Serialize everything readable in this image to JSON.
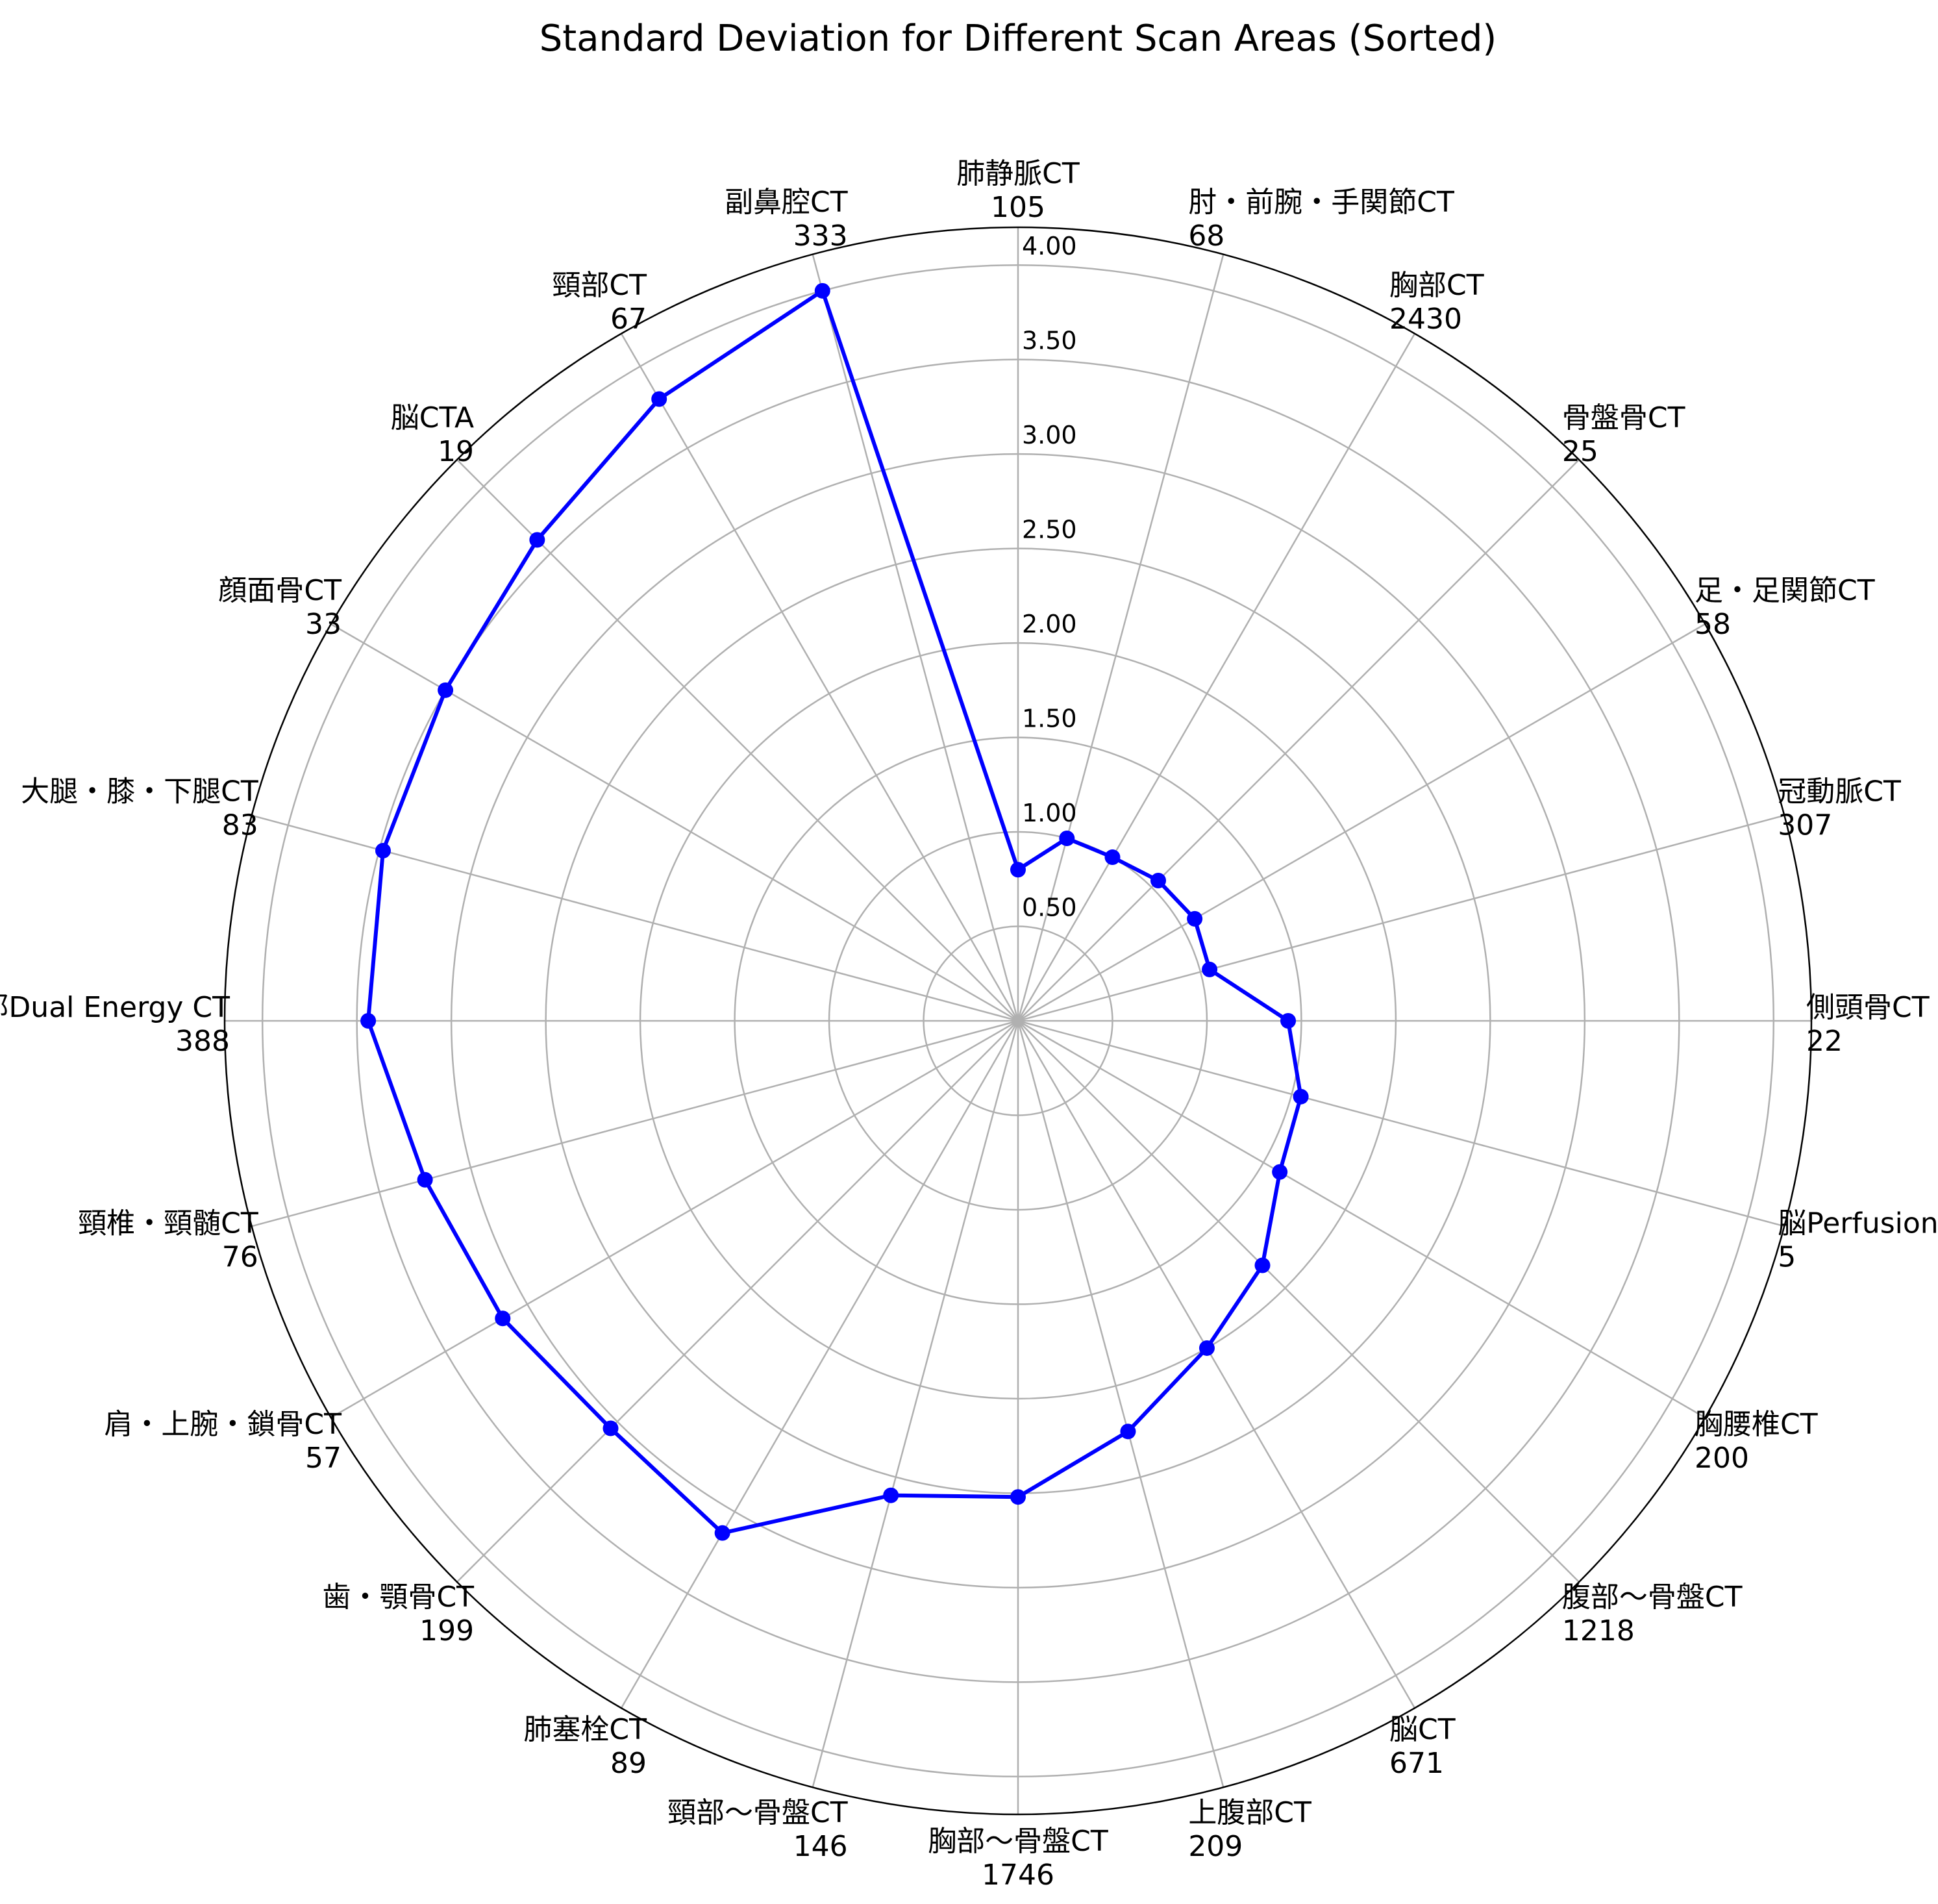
{
  "chart_data": {
    "type": "radar",
    "title": "Standard Deviation for Different Scan Areas (Sorted)",
    "categories": [
      {
        "label": "肺静脈CT",
        "count": "105",
        "value": 0.8
      },
      {
        "label": "肘・前腕・手関節CT",
        "count": "68",
        "value": 1.0
      },
      {
        "label": "胸部CT",
        "count": "2430",
        "value": 1.0
      },
      {
        "label": "骨盤骨CT",
        "count": "25",
        "value": 1.05
      },
      {
        "label": "足・足関節CT",
        "count": "58",
        "value": 1.08
      },
      {
        "label": "冠動脈CT",
        "count": "307",
        "value": 1.05
      },
      {
        "label": "側頭骨CT",
        "count": "22",
        "value": 1.43
      },
      {
        "label": "脳Perfusion",
        "count": "5",
        "value": 1.55
      },
      {
        "label": "胸腰椎CT",
        "count": "200",
        "value": 1.6
      },
      {
        "label": "腹部～骨盤CT",
        "count": "1218",
        "value": 1.83
      },
      {
        "label": "脳CT",
        "count": "671",
        "value": 2.0
      },
      {
        "label": "上腹部CT",
        "count": "209",
        "value": 2.25
      },
      {
        "label": "胸部～骨盤CT",
        "count": "1746",
        "value": 2.52
      },
      {
        "label": "頸部～骨盤CT",
        "count": "146",
        "value": 2.6
      },
      {
        "label": "肺塞栓CT",
        "count": "89",
        "value": 3.13
      },
      {
        "label": "歯・顎骨CT",
        "count": "199",
        "value": 3.05
      },
      {
        "label": "肩・上腕・鎖骨CT",
        "count": "57",
        "value": 3.15
      },
      {
        "label": "頸椎・頸髄CT",
        "count": "76",
        "value": 3.25
      },
      {
        "label": "体幹部Dual Energy CT",
        "count": "388",
        "value": 3.44
      },
      {
        "label": "大腿・膝・下腿CT",
        "count": "83",
        "value": 3.48
      },
      {
        "label": "顔面骨CT",
        "count": "33",
        "value": 3.5
      },
      {
        "label": "脳CTA",
        "count": "19",
        "value": 3.6
      },
      {
        "label": "頸部CT",
        "count": "67",
        "value": 3.8
      },
      {
        "label": "副鼻腔CT",
        "count": "333",
        "value": 4.0
      }
    ],
    "r_ticks": [
      "0.50",
      "1.00",
      "1.50",
      "2.00",
      "2.50",
      "3.00",
      "3.50",
      "4.00"
    ],
    "r_range": [
      0,
      4.2
    ],
    "grid": true,
    "series_color": "#0000ff",
    "grid_color": "#b0b0b0",
    "start_angle": "top",
    "direction": "clockwise"
  }
}
